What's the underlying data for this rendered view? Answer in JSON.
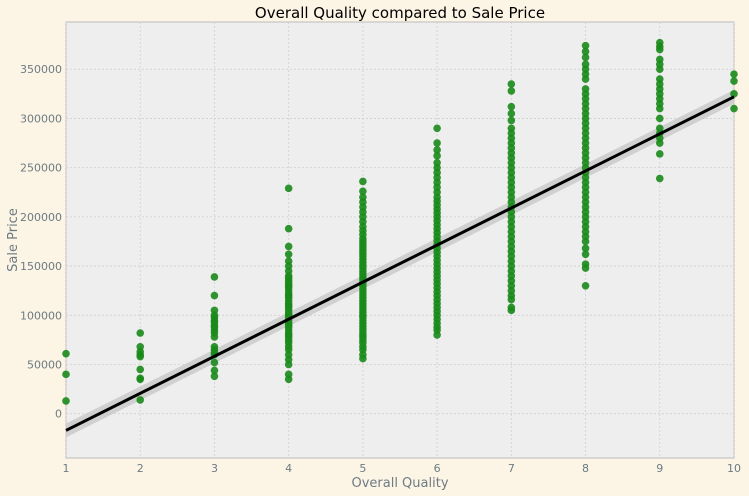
{
  "chart_data": {
    "type": "scatter",
    "title": "Overall Quality compared to Sale Price",
    "xlabel": "Overall Quality",
    "ylabel": "Sale Price",
    "xlim": [
      1,
      10
    ],
    "ylim": [
      -45000,
      398000
    ],
    "xticks": [
      "1",
      "2",
      "3",
      "4",
      "5",
      "6",
      "7",
      "8",
      "9",
      "10"
    ],
    "yticks": [
      {
        "value": 0,
        "label": "0"
      },
      {
        "value": 50000,
        "label": "50000"
      },
      {
        "value": 100000,
        "label": "100000"
      },
      {
        "value": 150000,
        "label": "150000"
      },
      {
        "value": 200000,
        "label": "200000"
      },
      {
        "value": 250000,
        "label": "250000"
      },
      {
        "value": 300000,
        "label": "300000"
      },
      {
        "value": 350000,
        "label": "350000"
      }
    ],
    "grid": true,
    "colors": {
      "points": "#1a8a1a",
      "regression_line": "#000000",
      "confidence_band": "#c8c8c8",
      "plot_background": "#eeeeee",
      "figure_background": "#fcf5e6",
      "grid": "#cfcfcf"
    },
    "points": [
      {
        "x": 1,
        "y": [
          13000,
          40000,
          61000
        ]
      },
      {
        "x": 2,
        "y": [
          14000,
          35000,
          36000,
          45000,
          58000,
          60000,
          63000,
          68000,
          82000
        ]
      },
      {
        "x": 3,
        "y": [
          38000,
          44000,
          52000,
          60000,
          62000,
          65000,
          68000,
          78000,
          82000,
          85000,
          88000,
          90000,
          93000,
          95000,
          98000,
          100000,
          105000,
          120000,
          139000
        ]
      },
      {
        "x": 4,
        "y": [
          35000,
          40000,
          50000,
          55000,
          60000,
          65000,
          68000,
          72000,
          75000,
          78000,
          80000,
          82000,
          85000,
          88000,
          90000,
          92000,
          95000,
          98000,
          100000,
          102000,
          105000,
          108000,
          110000,
          112000,
          115000,
          118000,
          120000,
          122000,
          125000,
          128000,
          130000,
          132000,
          135000,
          138000,
          140000,
          145000,
          150000,
          155000,
          162000,
          170000,
          188000,
          229000
        ]
      },
      {
        "x": 5,
        "y": [
          56000,
          60000,
          65000,
          68000,
          72000,
          75000,
          78000,
          80000,
          83000,
          86000,
          89000,
          92000,
          95000,
          98000,
          100000,
          103000,
          106000,
          109000,
          112000,
          115000,
          118000,
          121000,
          124000,
          127000,
          130000,
          133000,
          136000,
          139000,
          142000,
          145000,
          148000,
          151000,
          154000,
          157000,
          160000,
          163000,
          166000,
          169000,
          172000,
          175000,
          178000,
          182000,
          186000,
          190000,
          195000,
          200000,
          205000,
          210000,
          215000,
          220000,
          226000,
          236000
        ]
      },
      {
        "x": 6,
        "y": [
          80000,
          85000,
          88000,
          92000,
          96000,
          100000,
          104000,
          108000,
          112000,
          116000,
          120000,
          124000,
          128000,
          132000,
          136000,
          140000,
          144000,
          148000,
          152000,
          156000,
          160000,
          164000,
          168000,
          172000,
          176000,
          180000,
          184000,
          188000,
          192000,
          196000,
          200000,
          204000,
          208000,
          212000,
          216000,
          220000,
          225000,
          230000,
          235000,
          240000,
          245000,
          250000,
          255000,
          262000,
          268000,
          275000,
          290000
        ]
      },
      {
        "x": 7,
        "y": [
          105000,
          108000,
          116000,
          120000,
          125000,
          130000,
          135000,
          140000,
          145000,
          150000,
          155000,
          160000,
          165000,
          170000,
          175000,
          180000,
          185000,
          190000,
          195000,
          200000,
          205000,
          210000,
          215000,
          220000,
          225000,
          230000,
          235000,
          240000,
          245000,
          250000,
          255000,
          260000,
          265000,
          270000,
          275000,
          280000,
          285000,
          290000,
          298000,
          305000,
          312000,
          328000,
          335000
        ]
      },
      {
        "x": 8,
        "y": [
          130000,
          148000,
          152000,
          162000,
          168000,
          175000,
          180000,
          185000,
          190000,
          195000,
          200000,
          205000,
          210000,
          215000,
          220000,
          225000,
          230000,
          235000,
          240000,
          245000,
          250000,
          255000,
          260000,
          265000,
          270000,
          275000,
          280000,
          285000,
          290000,
          295000,
          300000,
          305000,
          310000,
          315000,
          320000,
          325000,
          330000,
          340000,
          345000,
          350000,
          355000,
          362000,
          368000,
          374000
        ]
      },
      {
        "x": 9,
        "y": [
          239000,
          264000,
          275000,
          280000,
          285000,
          290000,
          300000,
          310000,
          315000,
          320000,
          325000,
          330000,
          335000,
          340000,
          350000,
          355000,
          360000,
          370000,
          373000,
          377000
        ]
      },
      {
        "x": 10,
        "y": [
          310000,
          325000,
          338000,
          345000
        ]
      }
    ],
    "regression": {
      "x": [
        1,
        10
      ],
      "y": [
        -17000,
        322000
      ]
    },
    "confidence_band": {
      "x": [
        1,
        10
      ],
      "lower": [
        -24000,
        315000
      ],
      "upper": [
        -10000,
        329000
      ]
    }
  }
}
